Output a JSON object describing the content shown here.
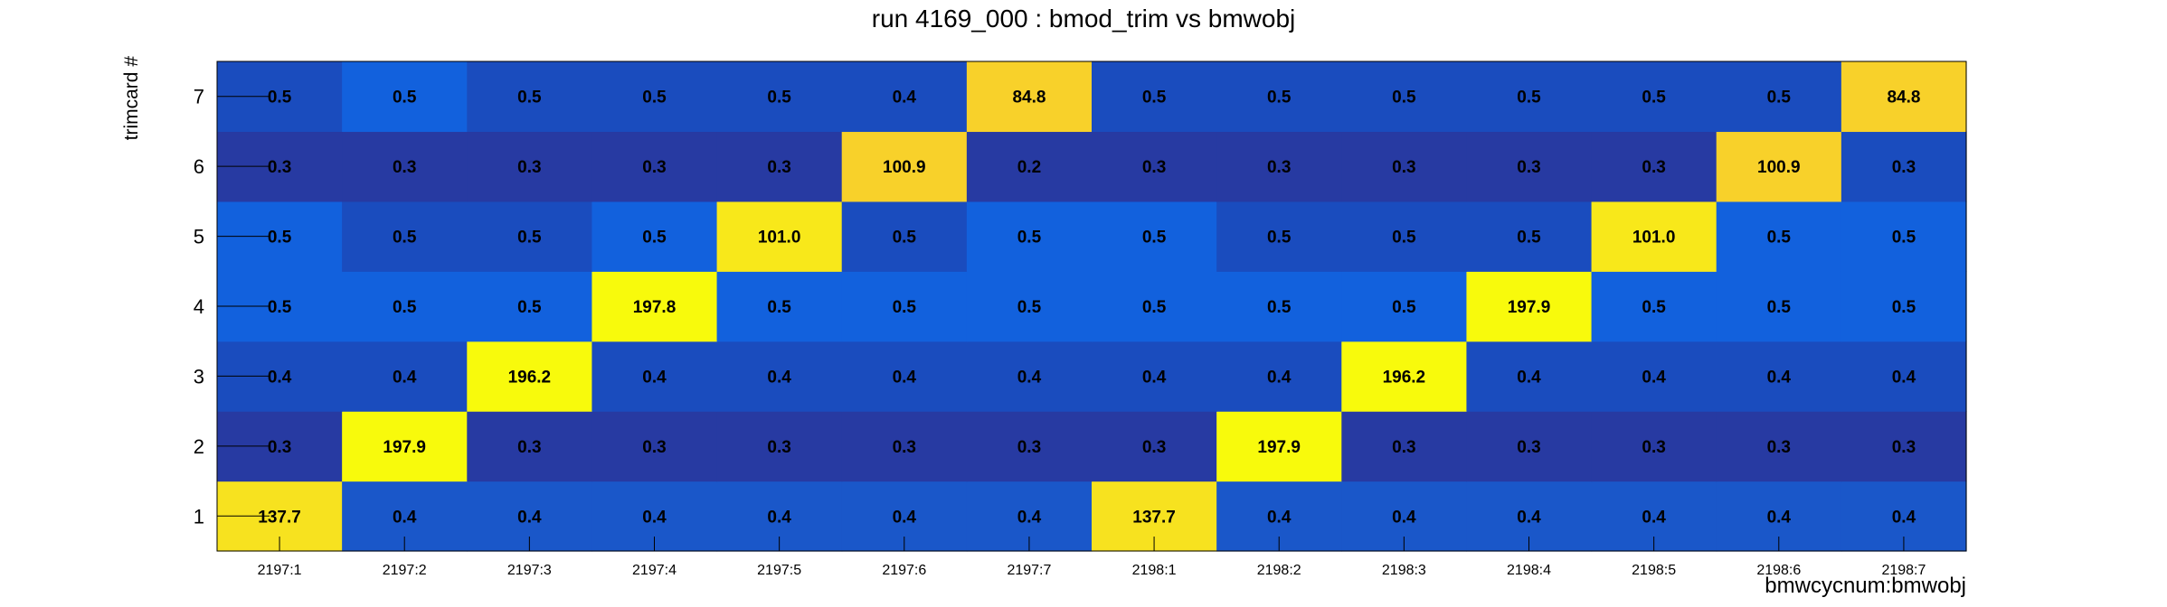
{
  "chart_data": {
    "type": "heatmap",
    "title": "run 4169_000 : bmod_trim vs bmwobj",
    "xlabel": "bmwcycnum:bmwobj",
    "ylabel": "trimcard #",
    "x_categories": [
      "2197:1",
      "2197:2",
      "2197:3",
      "2197:4",
      "2197:5",
      "2197:6",
      "2197:7",
      "2198:1",
      "2198:2",
      "2198:3",
      "2198:4",
      "2198:5",
      "2198:6",
      "2198:7"
    ],
    "y_categories": [
      "1",
      "2",
      "3",
      "4",
      "5",
      "6",
      "7"
    ],
    "grid": false,
    "values": [
      [
        137.7,
        0.4,
        0.4,
        0.4,
        0.4,
        0.4,
        0.4,
        137.7,
        0.4,
        0.4,
        0.4,
        0.4,
        0.4,
        0.4
      ],
      [
        0.3,
        197.9,
        0.3,
        0.3,
        0.3,
        0.3,
        0.3,
        0.3,
        197.9,
        0.3,
        0.3,
        0.3,
        0.3,
        0.3
      ],
      [
        0.4,
        0.4,
        196.2,
        0.4,
        0.4,
        0.4,
        0.4,
        0.4,
        0.4,
        196.2,
        0.4,
        0.4,
        0.4,
        0.4
      ],
      [
        0.5,
        0.5,
        0.5,
        197.8,
        0.5,
        0.5,
        0.5,
        0.5,
        0.5,
        0.5,
        197.9,
        0.5,
        0.5,
        0.5
      ],
      [
        0.5,
        0.5,
        0.5,
        0.5,
        101.0,
        0.5,
        0.5,
        0.5,
        0.5,
        0.5,
        0.5,
        101.0,
        0.5,
        0.5
      ],
      [
        0.3,
        0.3,
        0.3,
        0.3,
        0.3,
        100.9,
        0.2,
        0.3,
        0.3,
        0.3,
        0.3,
        0.3,
        100.9,
        0.3
      ],
      [
        0.5,
        0.5,
        0.5,
        0.5,
        0.5,
        0.4,
        84.8,
        0.5,
        0.5,
        0.5,
        0.5,
        0.5,
        0.5,
        84.8
      ]
    ],
    "cell_colors": [
      [
        "#f7e21f",
        "#1a57c9",
        "#1a57c9",
        "#1a57c9",
        "#1a57c9",
        "#1a57c9",
        "#1a57c9",
        "#f7e21f",
        "#1a57c9",
        "#1a57c9",
        "#1a57c9",
        "#1a57c9",
        "#1a57c9",
        "#1a57c9"
      ],
      [
        "#273aa2",
        "#f8fa0c",
        "#273aa2",
        "#273aa2",
        "#273aa2",
        "#273aa2",
        "#273aa2",
        "#273aa2",
        "#f8fa0c",
        "#273aa2",
        "#273aa2",
        "#273aa2",
        "#273aa2",
        "#273aa2"
      ],
      [
        "#1a4cbe",
        "#1a4cbe",
        "#f8fa0c",
        "#1a4cbe",
        "#1a4cbe",
        "#1a4cbe",
        "#1a4cbe",
        "#1a4cbe",
        "#1a4cbe",
        "#f8fa0c",
        "#1a4cbe",
        "#1a4cbe",
        "#1a4cbe",
        "#1a4cbe"
      ],
      [
        "#1261dd",
        "#1261dd",
        "#1261dd",
        "#f8fa0c",
        "#1261dd",
        "#1261dd",
        "#1261dd",
        "#1261dd",
        "#1261dd",
        "#1261dd",
        "#f8fa0c",
        "#1261dd",
        "#1261dd",
        "#1261dd"
      ],
      [
        "#1261dd",
        "#1a4cbe",
        "#1a4cbe",
        "#1261dd",
        "#f8e81a",
        "#1a4cbe",
        "#1261dd",
        "#1261dd",
        "#1a4cbe",
        "#1a4cbe",
        "#1a4cbe",
        "#f8e81a",
        "#1261dd",
        "#1261dd"
      ],
      [
        "#273aa2",
        "#273aa2",
        "#273aa2",
        "#273aa2",
        "#273aa2",
        "#f8d12a",
        "#273aa2",
        "#273aa2",
        "#273aa2",
        "#273aa2",
        "#273aa2",
        "#273aa2",
        "#f8d12a",
        "#1a4cbe"
      ],
      [
        "#1a4cbe",
        "#1261dd",
        "#1a4cbe",
        "#1a4cbe",
        "#1a4cbe",
        "#1a4cbe",
        "#f8d12a",
        "#1a4cbe",
        "#1a4cbe",
        "#1a4cbe",
        "#1a4cbe",
        "#1a4cbe",
        "#1a4cbe",
        "#f8d12a"
      ]
    ]
  }
}
